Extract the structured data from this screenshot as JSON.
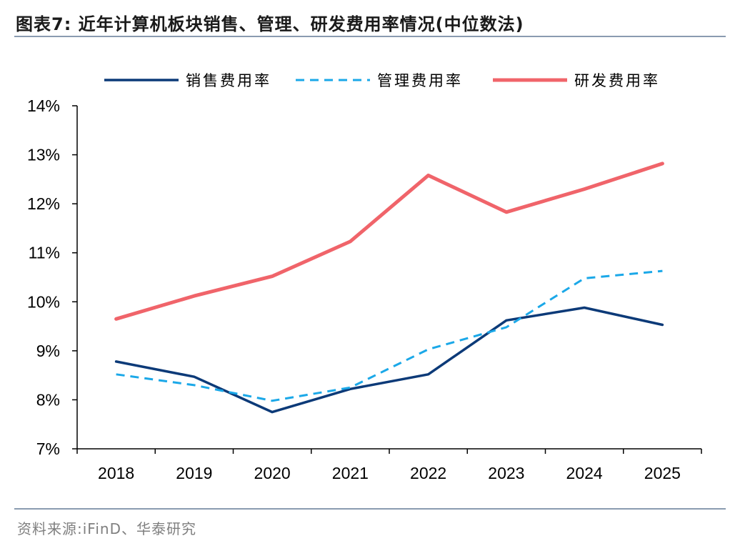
{
  "title": "图表7:  近年计算机板块销售、管理、研发费用率情况(中位数法)",
  "source": "资料来源:iFinD、华泰研究",
  "chart_data": {
    "type": "line",
    "title": "近年计算机板块销售、管理、研发费用率情况(中位数法)",
    "categories": [
      "2018",
      "2019",
      "2020",
      "2021",
      "2022",
      "2023",
      "2024",
      "2025"
    ],
    "ylim": [
      7,
      14
    ],
    "yticks": [
      "14%",
      "13%",
      "12%",
      "11%",
      "10%",
      "9%",
      "8%",
      "7%"
    ],
    "ytick_values": [
      14,
      13,
      12,
      11,
      10,
      9,
      8,
      7
    ],
    "legend_position": "top",
    "grid": false,
    "series": [
      {
        "name": "销售费用率",
        "color": "#0c3a78",
        "dash": "solid",
        "width": 3.5,
        "values": [
          8.78,
          8.47,
          7.75,
          8.22,
          8.52,
          9.62,
          9.88,
          9.53
        ]
      },
      {
        "name": "管理费用率",
        "color": "#1ba8e8",
        "dash": "dashed",
        "width": 3,
        "values": [
          8.52,
          8.3,
          7.98,
          8.25,
          9.03,
          9.48,
          10.48,
          10.63
        ]
      },
      {
        "name": "研发费用率",
        "color": "#f0646a",
        "dash": "solid",
        "width": 5,
        "values": [
          9.65,
          10.12,
          10.52,
          11.23,
          12.58,
          11.83,
          12.3,
          12.82
        ]
      }
    ]
  }
}
